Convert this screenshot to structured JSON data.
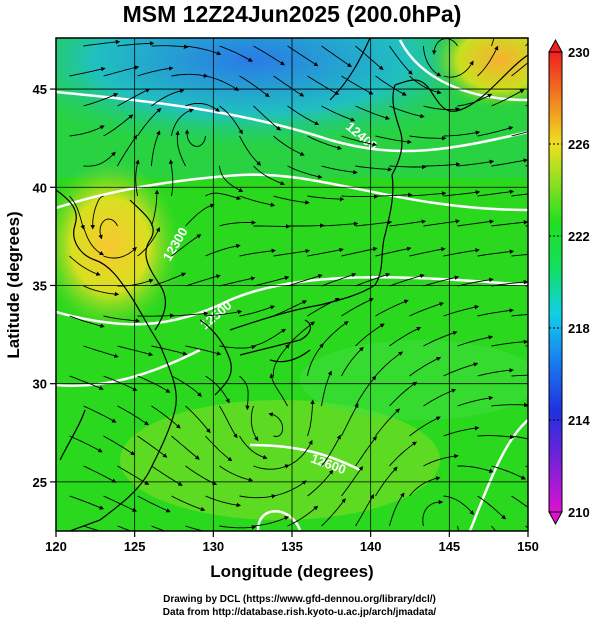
{
  "title": "MSM 12Z24Jun2025 (200.0hPa)",
  "map": {
    "xlabel": "Longitude (degrees)",
    "ylabel": "Latitude  (degrees)",
    "lon_range": [
      120,
      150
    ],
    "lat_range": [
      22.5,
      47.6
    ],
    "lon_ticks": [
      "120",
      "125",
      "130",
      "135",
      "140",
      "145",
      "150"
    ],
    "lat_ticks": [
      "25",
      "30",
      "35",
      "40",
      "45"
    ],
    "lon_values": [
      120,
      125,
      130,
      135,
      140,
      145,
      150
    ],
    "lat_values": [
      25,
      30,
      35,
      40,
      45
    ]
  },
  "contour_labels": [
    "12400",
    "12300",
    "12500",
    "12600"
  ],
  "colorbar": {
    "ticks": [
      "230",
      "226",
      "222",
      "218",
      "214",
      "210"
    ],
    "values": [
      230,
      226,
      222,
      218,
      214,
      210
    ],
    "range": [
      210,
      230
    ]
  },
  "credits": {
    "line1": "Drawing by DCL (https://www.gfd-dennou.org/library/dcl/)",
    "line2": "Data from http://database.rish.kyoto-u.ac.jp/arch/jmadata/"
  },
  "colors": {
    "field_green": "#22d418",
    "field_blue": "#2a8fe8",
    "field_yellow": "#f0d820",
    "contour": "#ffffff",
    "streamline": "#000000"
  }
}
